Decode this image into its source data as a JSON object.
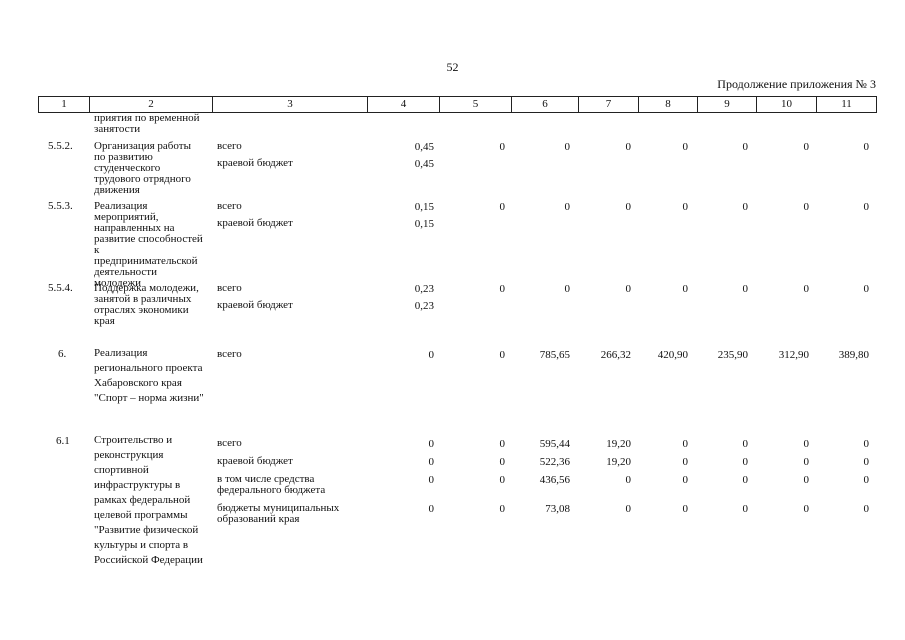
{
  "page": {
    "number": "52",
    "continuation": "Продолжение приложения № 3"
  },
  "header_columns": [
    "1",
    "2",
    "3",
    "4",
    "5",
    "6",
    "7",
    "8",
    "9",
    "10",
    "11"
  ],
  "rows": {
    "r0": {
      "name_tail": "приятия по временной занятости"
    },
    "r1": {
      "code": "5.5.2.",
      "name": "Организация работы по развитию студенческого трудового отрядного движения",
      "src1": "всего",
      "src2": "краевой бюджет",
      "v4a": "0,45",
      "v4b": "0,45",
      "v5": "0",
      "v6": "0",
      "v7": "0",
      "v8": "0",
      "v9": "0",
      "v10": "0",
      "v11": "0"
    },
    "r2": {
      "code": "5.5.3.",
      "name": "Реализация мероприятий, направленных на развитие способностей к предпринимательской деятельности молодежи",
      "src1": "всего",
      "src2": "краевой бюджет",
      "v4a": "0,15",
      "v4b": "0,15",
      "v5": "0",
      "v6": "0",
      "v7": "0",
      "v8": "0",
      "v9": "0",
      "v10": "0",
      "v11": "0"
    },
    "r3": {
      "code": "5.5.4.",
      "name": "Поддержка молодежи, занятой в различных отраслях экономики края",
      "src1": "всего",
      "src2": "краевой бюджет",
      "v4a": "0,23",
      "v4b": "0,23",
      "v5": "0",
      "v6": "0",
      "v7": "0",
      "v8": "0",
      "v9": "0",
      "v10": "0",
      "v11": "0"
    },
    "r4": {
      "code": "6.",
      "name": "Реализация регионального проекта Хабаровского края \"Спорт – норма жизни\"",
      "src1": "всего",
      "v4": "0",
      "v5": "0",
      "v6": "785,65",
      "v7": "266,32",
      "v8": "420,90",
      "v9": "235,90",
      "v10": "312,90",
      "v11": "389,80"
    },
    "r5": {
      "code": "6.1",
      "name": "Строительство и реконструкция спортивной инфраструктуры в рамках федеральной целевой программы \"Развитие физической культуры и спорта в Российской Федерации",
      "lines": [
        {
          "src": "всего",
          "v4": "0",
          "v5": "0",
          "v6": "595,44",
          "v7": "19,20",
          "v8": "0",
          "v9": "0",
          "v10": "0",
          "v11": "0"
        },
        {
          "src": "краевой бюджет",
          "v4": "0",
          "v5": "0",
          "v6": "522,36",
          "v7": "19,20",
          "v8": "0",
          "v9": "0",
          "v10": "0",
          "v11": "0"
        },
        {
          "src": "в том числе средства федерального бюджета",
          "v4": "0",
          "v5": "0",
          "v6": "436,56",
          "v7": "0",
          "v8": "0",
          "v9": "0",
          "v10": "0",
          "v11": "0"
        },
        {
          "src": "бюджеты муниципальных образований края",
          "v4": "0",
          "v5": "0",
          "v6": "73,08",
          "v7": "0",
          "v8": "0",
          "v9": "0",
          "v10": "0",
          "v11": "0"
        }
      ]
    }
  }
}
